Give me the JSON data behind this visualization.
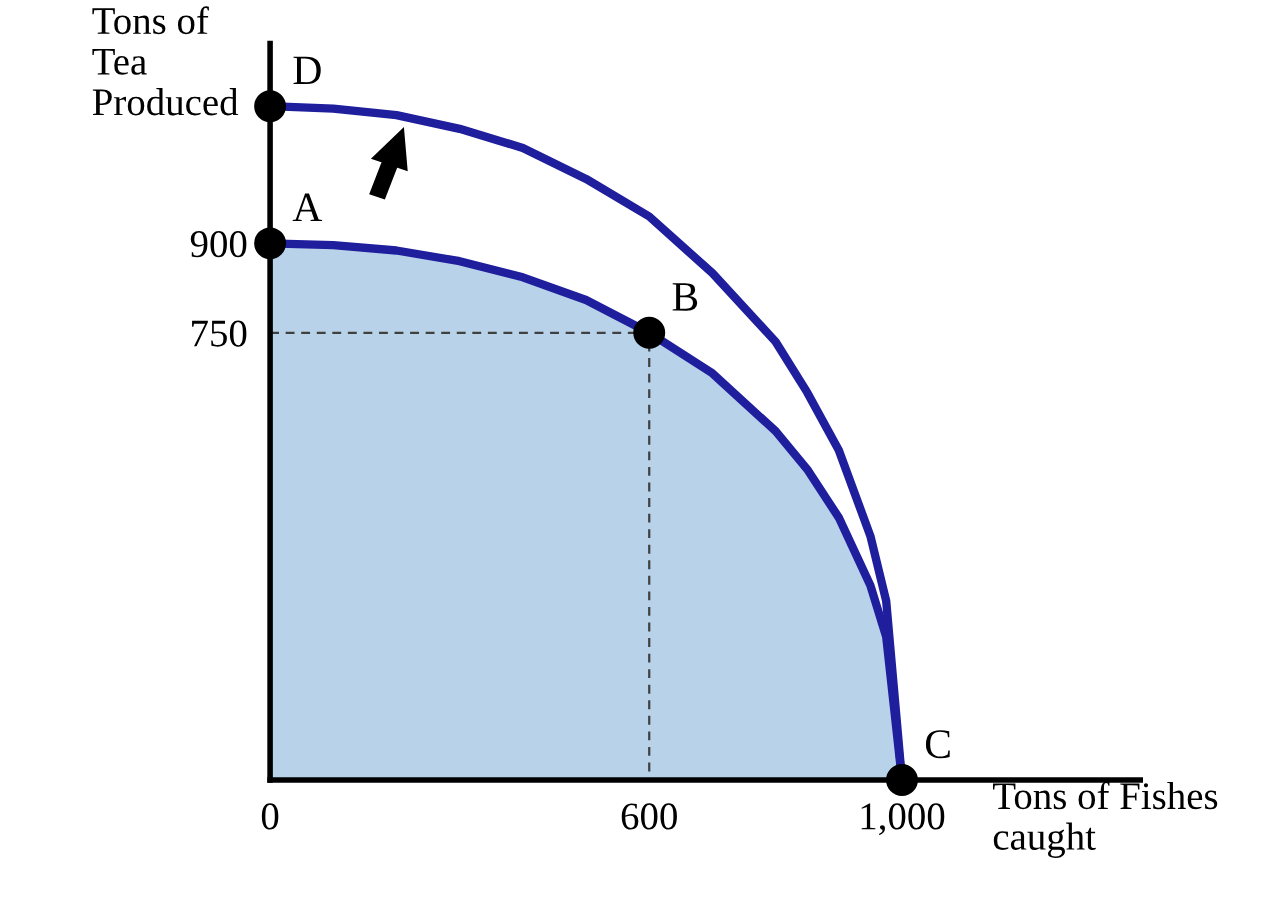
{
  "chart_data": {
    "type": "line",
    "xlabel": "Tons of Fishes\ncaught",
    "ylabel": "Tons of\nTea\nProduced",
    "xlim": [
      0,
      1377
    ],
    "ylim": [
      0,
      1235
    ],
    "xticks": [
      0,
      600,
      {
        "value": 1000,
        "label": "1,000"
      }
    ],
    "yticks": [
      750,
      900
    ],
    "grid": false,
    "legend": false,
    "series": [
      {
        "type": "area",
        "color": "#1f1f9e",
        "x": [
          0,
          100,
          200,
          300,
          400,
          500,
          600,
          700,
          800,
          850,
          900,
          950,
          975,
          1000
        ],
        "values": [
          900,
          897,
          888,
          870,
          843,
          805,
          750,
          682,
          585,
          521,
          440,
          326,
          240,
          0
        ]
      },
      {
        "color": "#1f1f9e",
        "x": [
          0,
          100,
          200,
          300,
          400,
          500,
          600,
          700,
          800,
          850,
          900,
          950,
          975,
          1000
        ],
        "values": [
          1130,
          1126,
          1115,
          1092,
          1060,
          1008,
          945,
          850,
          735,
          650,
          553,
          409,
          300,
          0
        ]
      },
      {
        "color": "#404040",
        "line_style": "dashed",
        "x": [
          0,
          600,
          600
        ],
        "values": [
          750,
          750,
          0
        ]
      },
      {
        "type": "scatter",
        "color": "#000000",
        "marker": "circle",
        "x": [
          0,
          600,
          1000,
          0
        ],
        "values": [
          900,
          750,
          0,
          1130
        ]
      }
    ],
    "annotations": [
      {
        "text": "A",
        "x": 0,
        "y": 900
      },
      {
        "text": "B",
        "x": 600,
        "y": 750
      },
      {
        "text": "C",
        "x": 1000,
        "y": 0
      },
      {
        "text": "D",
        "x": 0,
        "y": 1130
      }
    ]
  }
}
